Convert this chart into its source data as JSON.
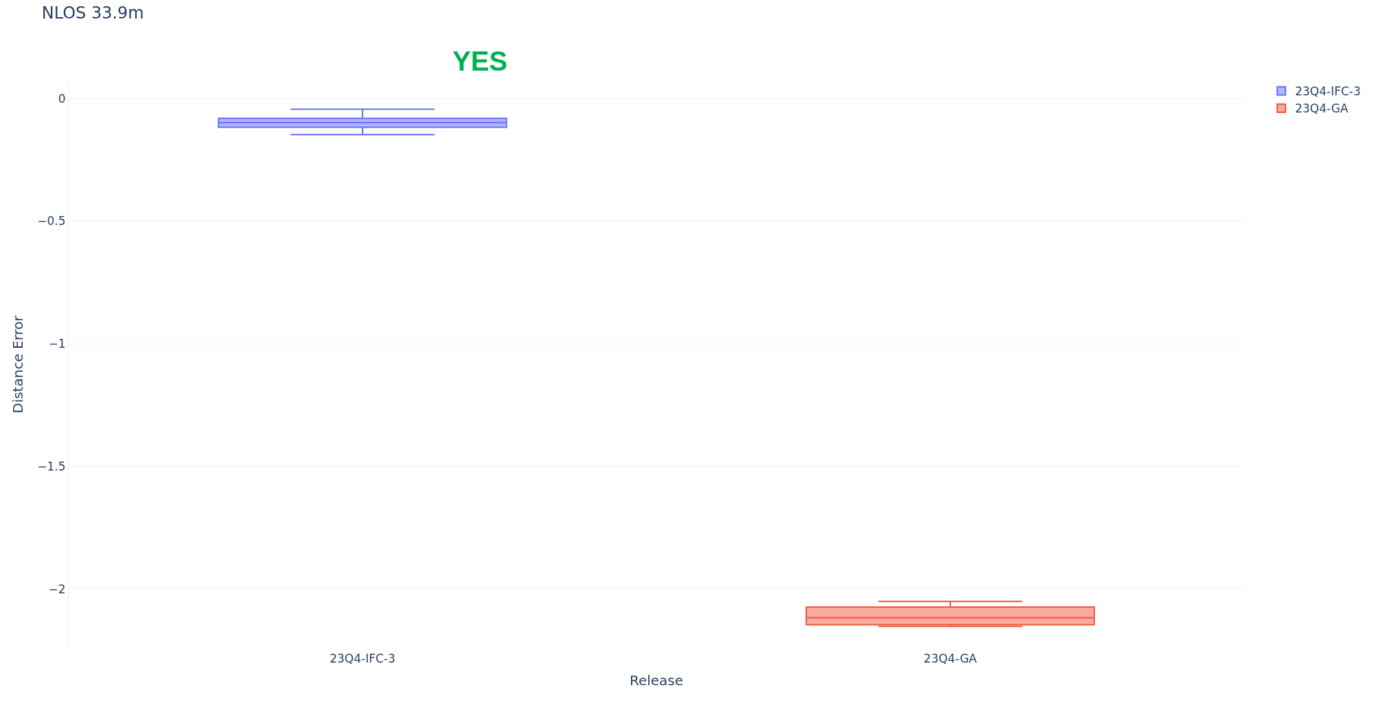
{
  "chart_data": {
    "type": "box",
    "title": "NLOS 33.9m",
    "xlabel": "Release",
    "ylabel": "Distance Error",
    "categories": [
      "23Q4-IFC-3",
      "23Q4-GA"
    ],
    "series": [
      {
        "name": "23Q4-IFC-3",
        "color": "#636efa",
        "boxes": [
          {
            "low": -0.147,
            "q1": -0.117,
            "median": -0.098,
            "q3": -0.081,
            "high": -0.044
          },
          null
        ]
      },
      {
        "name": "23Q4-GA",
        "color": "#ef553b",
        "boxes": [
          null,
          {
            "low": -2.153,
            "q1": -2.146,
            "median": -2.117,
            "q3": -2.074,
            "high": -2.051
          }
        ]
      }
    ],
    "annotations": [
      "YES"
    ],
    "ylim": [
      -2.25,
      0.08
    ],
    "yticks": [
      {
        "value": 0,
        "label": "0"
      },
      {
        "value": -0.5,
        "label": "−0.5"
      },
      {
        "value": -1,
        "label": "−1"
      },
      {
        "value": -1.5,
        "label": "−1.5"
      },
      {
        "value": -2,
        "label": "−2"
      }
    ],
    "grid": "y",
    "legend": "top right"
  }
}
